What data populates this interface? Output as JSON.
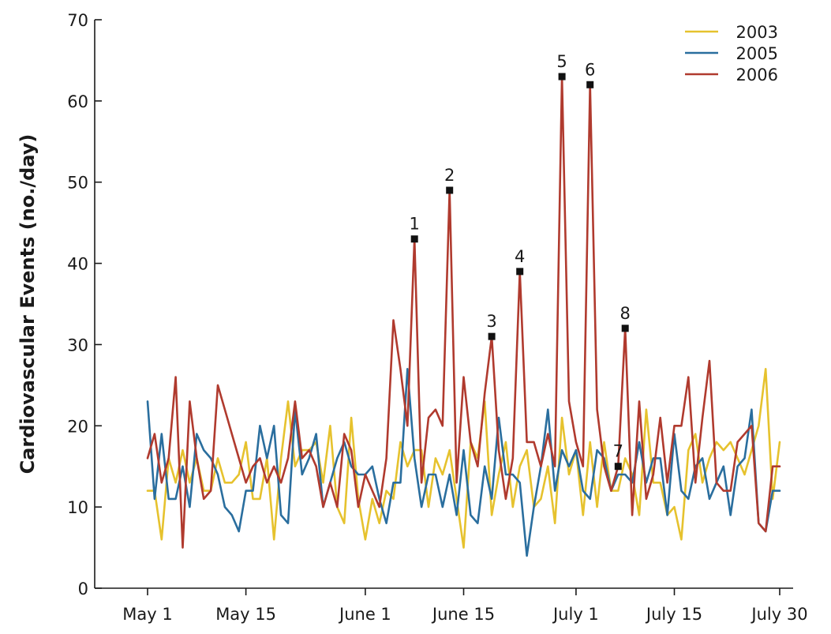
{
  "chart_data": {
    "type": "line",
    "title": "",
    "xlabel": "",
    "ylabel": "Cardiovascular Events (no./day)",
    "ylim": [
      0,
      70
    ],
    "yticks": [
      0,
      10,
      20,
      30,
      40,
      50,
      60,
      70
    ],
    "xlim": [
      1,
      91
    ],
    "xticks": [
      {
        "day": 1,
        "label": "May 1"
      },
      {
        "day": 15,
        "label": "May 15"
      },
      {
        "day": 32,
        "label": "June 1"
      },
      {
        "day": 46,
        "label": "June 15"
      },
      {
        "day": 62,
        "label": "July 1"
      },
      {
        "day": 76,
        "label": "July 15"
      },
      {
        "day": 91,
        "label": "July 30"
      }
    ],
    "legend_position": "top-right",
    "series": [
      {
        "name": "2003",
        "color": "#e6c22e",
        "x": [
          1,
          2,
          3,
          4,
          5,
          6,
          7,
          8,
          9,
          10,
          11,
          12,
          13,
          14,
          15,
          16,
          17,
          18,
          19,
          20,
          21,
          22,
          23,
          24,
          25,
          26,
          27,
          28,
          29,
          30,
          31,
          32,
          33,
          34,
          35,
          36,
          37,
          38,
          39,
          40,
          41,
          42,
          43,
          44,
          45,
          46,
          47,
          48,
          49,
          50,
          51,
          52,
          53,
          54,
          55,
          56,
          57,
          58,
          59,
          60,
          61,
          62,
          63,
          64,
          65,
          66,
          67,
          68,
          69,
          70,
          71,
          72,
          73,
          74,
          75,
          76,
          77,
          78,
          79,
          80,
          81,
          82,
          83,
          84,
          85,
          86,
          87,
          88,
          89,
          90,
          91
        ],
        "values": [
          12,
          12,
          6,
          16,
          13,
          17,
          13,
          16,
          12,
          12,
          16,
          13,
          13,
          14,
          18,
          11,
          11,
          16,
          6,
          16,
          23,
          15,
          17,
          17,
          18,
          13,
          20,
          10,
          8,
          21,
          11,
          6,
          11,
          8,
          12,
          11,
          18,
          15,
          17,
          17,
          10,
          16,
          14,
          17,
          11,
          5,
          18,
          16,
          23,
          9,
          14,
          18,
          10,
          15,
          17,
          10,
          11,
          15,
          8,
          21,
          14,
          17,
          9,
          18,
          10,
          18,
          12,
          12,
          16,
          14,
          9,
          22,
          13,
          13,
          9,
          10,
          6,
          17,
          19,
          13,
          16,
          18,
          17,
          18,
          16,
          14,
          17,
          20,
          27,
          11,
          18
        ]
      },
      {
        "name": "2005",
        "color": "#2a6e9e",
        "x": [
          1,
          2,
          3,
          4,
          5,
          6,
          7,
          8,
          9,
          10,
          11,
          12,
          13,
          14,
          15,
          16,
          17,
          18,
          19,
          20,
          21,
          22,
          23,
          24,
          25,
          26,
          27,
          28,
          29,
          30,
          31,
          32,
          33,
          34,
          35,
          36,
          37,
          38,
          39,
          40,
          41,
          42,
          43,
          44,
          45,
          46,
          47,
          48,
          49,
          50,
          51,
          52,
          53,
          54,
          55,
          56,
          57,
          58,
          59,
          60,
          61,
          62,
          63,
          64,
          65,
          66,
          67,
          68,
          69,
          70,
          71,
          72,
          73,
          74,
          75,
          76,
          77,
          78,
          79,
          80,
          81,
          82,
          83,
          84,
          85,
          86,
          87,
          88,
          89,
          90,
          91
        ],
        "values": [
          23,
          11,
          19,
          11,
          11,
          15,
          10,
          19,
          17,
          16,
          14,
          10,
          9,
          7,
          12,
          12,
          20,
          16,
          20,
          9,
          8,
          22,
          14,
          16,
          19,
          10,
          13,
          16,
          18,
          15,
          14,
          14,
          15,
          11,
          8,
          13,
          13,
          27,
          16,
          10,
          14,
          14,
          10,
          14,
          9,
          17,
          9,
          8,
          15,
          11,
          21,
          14,
          14,
          13,
          4,
          10,
          15,
          22,
          12,
          17,
          15,
          17,
          12,
          11,
          17,
          16,
          12,
          14,
          14,
          13,
          18,
          13,
          16,
          16,
          9,
          19,
          12,
          11,
          15,
          16,
          11,
          13,
          15,
          9,
          15,
          16,
          22,
          8,
          7,
          12,
          12
        ]
      },
      {
        "name": "2006",
        "color": "#b03a2e",
        "x": [
          1,
          2,
          3,
          4,
          5,
          6,
          7,
          8,
          9,
          10,
          11,
          12,
          13,
          14,
          15,
          16,
          17,
          18,
          19,
          20,
          21,
          22,
          23,
          24,
          25,
          26,
          27,
          28,
          29,
          30,
          31,
          32,
          33,
          34,
          35,
          36,
          37,
          38,
          39,
          40,
          41,
          42,
          43,
          44,
          45,
          46,
          47,
          48,
          49,
          50,
          51,
          52,
          53,
          54,
          55,
          56,
          57,
          58,
          59,
          60,
          61,
          62,
          63,
          64,
          65,
          66,
          67,
          68,
          69,
          70,
          71,
          72,
          73,
          74,
          75,
          76,
          77,
          78,
          79,
          80,
          81,
          82,
          83,
          84,
          85,
          86,
          87,
          88,
          89,
          90,
          91
        ],
        "values": [
          16,
          19,
          13,
          16,
          26,
          5,
          23,
          16,
          11,
          12,
          25,
          22,
          19,
          16,
          13,
          15,
          16,
          13,
          15,
          13,
          16,
          23,
          16,
          17,
          15,
          10,
          13,
          10,
          19,
          17,
          10,
          14,
          12,
          10,
          16,
          33,
          27,
          20,
          43,
          13,
          21,
          22,
          20,
          49,
          13,
          26,
          18,
          15,
          24,
          31,
          17,
          11,
          16,
          39,
          18,
          18,
          15,
          19,
          15,
          63,
          23,
          18,
          15,
          62,
          22,
          15,
          12,
          15,
          32,
          9,
          23,
          11,
          14,
          21,
          13,
          20,
          20,
          26,
          13,
          21,
          28,
          13,
          12,
          12,
          18,
          19,
          20,
          8,
          7,
          15,
          15
        ]
      }
    ],
    "annotations": [
      {
        "label": "1",
        "x": 39,
        "y": 43
      },
      {
        "label": "2",
        "x": 44,
        "y": 49
      },
      {
        "label": "3",
        "x": 50,
        "y": 31
      },
      {
        "label": "4",
        "x": 54,
        "y": 39
      },
      {
        "label": "5",
        "x": 60,
        "y": 63
      },
      {
        "label": "6",
        "x": 64,
        "y": 62
      },
      {
        "label": "7",
        "x": 68,
        "y": 15
      },
      {
        "label": "8",
        "x": 69,
        "y": 32
      }
    ]
  }
}
